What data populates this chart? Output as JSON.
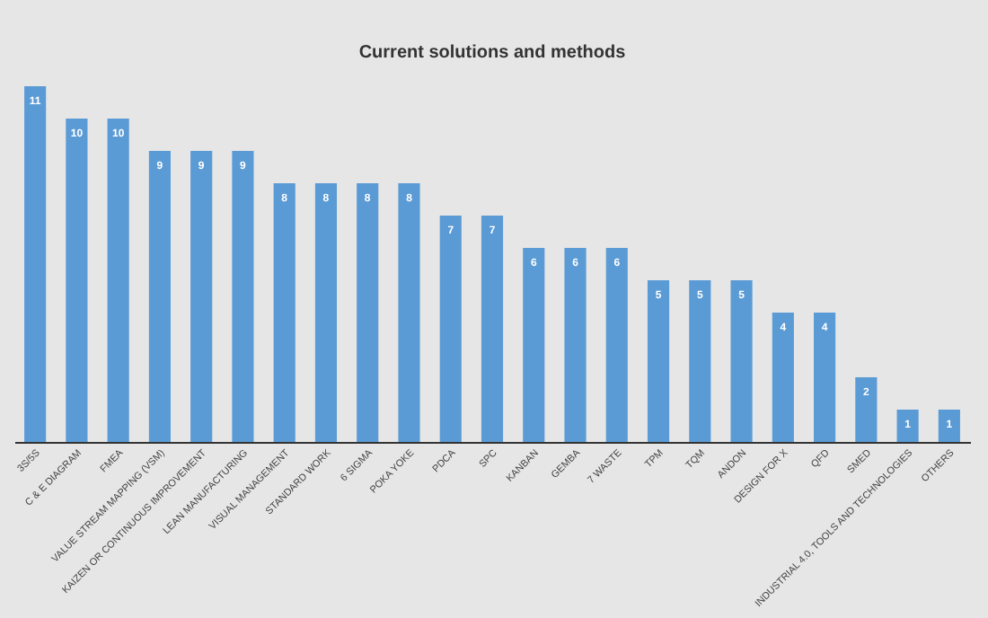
{
  "chart_data": {
    "type": "bar",
    "title": "Current solutions and methods",
    "categories": [
      "3S/5S",
      "C & E DIAGRAM",
      "FMEA",
      "VALUE STREAM MAPPING (VSM)",
      "KAIZEN OR CONTINUOUS IMPROVEMENT",
      "LEAN MANUFACTURING",
      "VISUAL MANAGEMENT",
      "STANDARD WORK",
      "6 SIGMA",
      "POKA YOKE",
      "PDCA",
      "SPC",
      "KANBAN",
      "GEMBA",
      "7 WASTE",
      "TPM",
      "TQM",
      "ANDON",
      "DESIGN FOR X",
      "QFD",
      "SMED",
      "INDUSTRIAL 4.0, TOOLS AND TECHNOLOGIES",
      "OTHERS"
    ],
    "values": [
      11,
      10,
      10,
      9,
      9,
      9,
      8,
      8,
      8,
      8,
      7,
      7,
      6,
      6,
      6,
      5,
      5,
      5,
      4,
      4,
      2,
      1,
      1
    ],
    "color": "#5b9bd5",
    "data_labels": true,
    "tick_labels": "x"
  }
}
